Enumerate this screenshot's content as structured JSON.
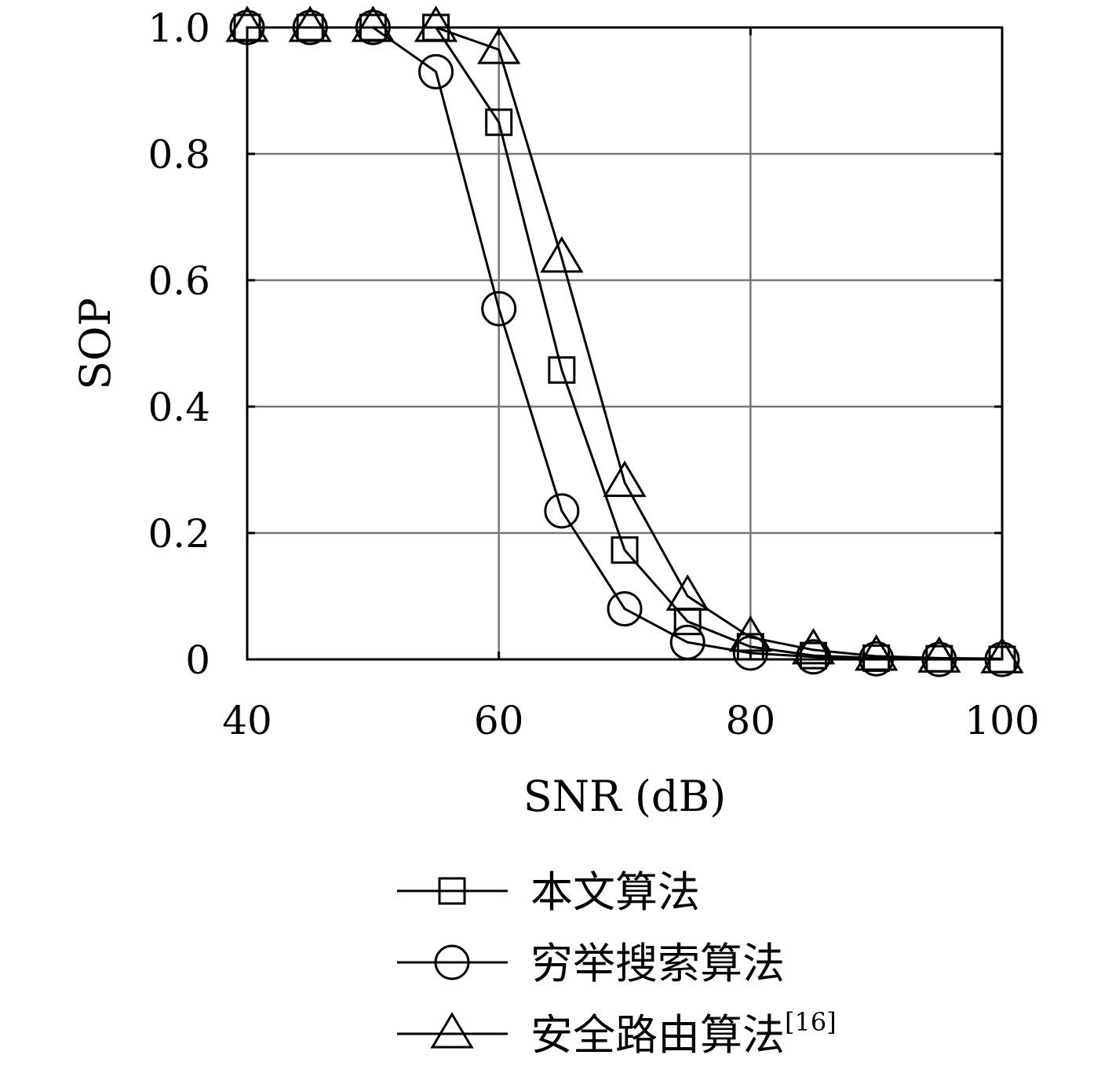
{
  "chart_data": {
    "type": "line",
    "xlabel": "SNR (dB)",
    "ylabel": "SOP",
    "xlim": [
      40,
      100
    ],
    "ylim": [
      0,
      1.0
    ],
    "x_ticks": [
      {
        "value": 40,
        "label": "40"
      },
      {
        "value": 60,
        "label": "60"
      },
      {
        "value": 80,
        "label": "80"
      },
      {
        "value": 100,
        "label": "100"
      }
    ],
    "y_ticks": [
      {
        "value": 0,
        "label": "0"
      },
      {
        "value": 0.2,
        "label": "0.2"
      },
      {
        "value": 0.4,
        "label": "0.4"
      },
      {
        "value": 0.6,
        "label": "0.6"
      },
      {
        "value": 0.8,
        "label": "0.8"
      },
      {
        "value": 1.0,
        "label": "1.0"
      }
    ],
    "grid": true,
    "legend_position": "bottom",
    "x": [
      40,
      45,
      50,
      55,
      60,
      65,
      70,
      75,
      80,
      85,
      90,
      95,
      100
    ],
    "series": [
      {
        "name": "本文算法",
        "marker": "square",
        "values": [
          1.0,
          1.0,
          1.0,
          1.0,
          0.85,
          0.458,
          0.173,
          0.06,
          0.02,
          0.006,
          0.002,
          0.001,
          0.0
        ]
      },
      {
        "name": "穷举搜索算法",
        "marker": "circle",
        "values": [
          1.0,
          1.0,
          1.0,
          0.93,
          0.555,
          0.235,
          0.08,
          0.027,
          0.01,
          0.004,
          0.001,
          0.0,
          0.0
        ]
      },
      {
        "name": "安全路由算法",
        "name_superscript": "[16]",
        "marker": "triangle",
        "values": [
          1.0,
          1.0,
          1.0,
          1.0,
          0.965,
          0.635,
          0.28,
          0.1,
          0.035,
          0.015,
          0.005,
          0.002,
          0.001
        ]
      }
    ],
    "colors": {
      "line": "#000000",
      "grid": "#777777",
      "frame": "#000000"
    }
  }
}
